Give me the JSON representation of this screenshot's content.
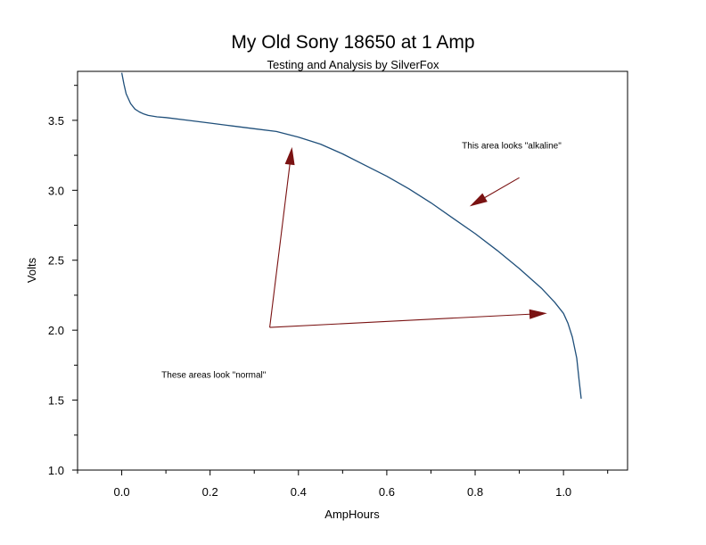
{
  "chart_data": {
    "type": "line",
    "title": "My Old Sony 18650 at 1 Amp",
    "subtitle": "Testing and Analysis by SilverFox",
    "xlabel": "AmpHours",
    "ylabel": "Volts",
    "xlim": [
      -0.1,
      1.145
    ],
    "ylim": [
      1.0,
      3.85
    ],
    "x_ticks": [
      "0.0",
      "0.2",
      "0.4",
      "0.6",
      "0.8",
      "1.0"
    ],
    "y_ticks": [
      "1.0",
      "1.5",
      "2.0",
      "2.5",
      "3.0",
      "3.5"
    ],
    "grid": false,
    "series": [
      {
        "color": "#1f4f7a",
        "x": [
          0.0,
          0.005,
          0.01,
          0.02,
          0.03,
          0.04,
          0.05,
          0.06,
          0.08,
          0.1,
          0.15,
          0.2,
          0.25,
          0.3,
          0.35,
          0.4,
          0.45,
          0.5,
          0.55,
          0.6,
          0.65,
          0.7,
          0.75,
          0.8,
          0.85,
          0.9,
          0.95,
          0.98,
          1.0,
          1.01,
          1.02,
          1.03,
          1.035,
          1.04
        ],
        "y": [
          3.84,
          3.76,
          3.69,
          3.62,
          3.58,
          3.56,
          3.545,
          3.535,
          3.525,
          3.52,
          3.5,
          3.48,
          3.46,
          3.44,
          3.42,
          3.38,
          3.33,
          3.26,
          3.18,
          3.1,
          3.01,
          2.91,
          2.8,
          2.69,
          2.57,
          2.44,
          2.3,
          2.2,
          2.12,
          2.05,
          1.95,
          1.8,
          1.65,
          1.51
        ]
      }
    ],
    "annotations": [
      {
        "text": "This area looks \"alkaline\"",
        "x": 0.77,
        "y": 3.3
      },
      {
        "text": "These areas look \"normal\"",
        "x": 0.09,
        "y": 1.66
      }
    ],
    "arrows": [
      {
        "from": [
          0.9,
          3.09
        ],
        "to": [
          0.79,
          2.89
        ],
        "color": "#7a1212"
      },
      {
        "from": [
          0.335,
          2.02
        ],
        "to": [
          0.385,
          3.3
        ],
        "color": "#7a1212"
      },
      {
        "from": [
          0.335,
          2.02
        ],
        "to": [
          0.96,
          2.12
        ],
        "color": "#7a1212"
      }
    ]
  }
}
